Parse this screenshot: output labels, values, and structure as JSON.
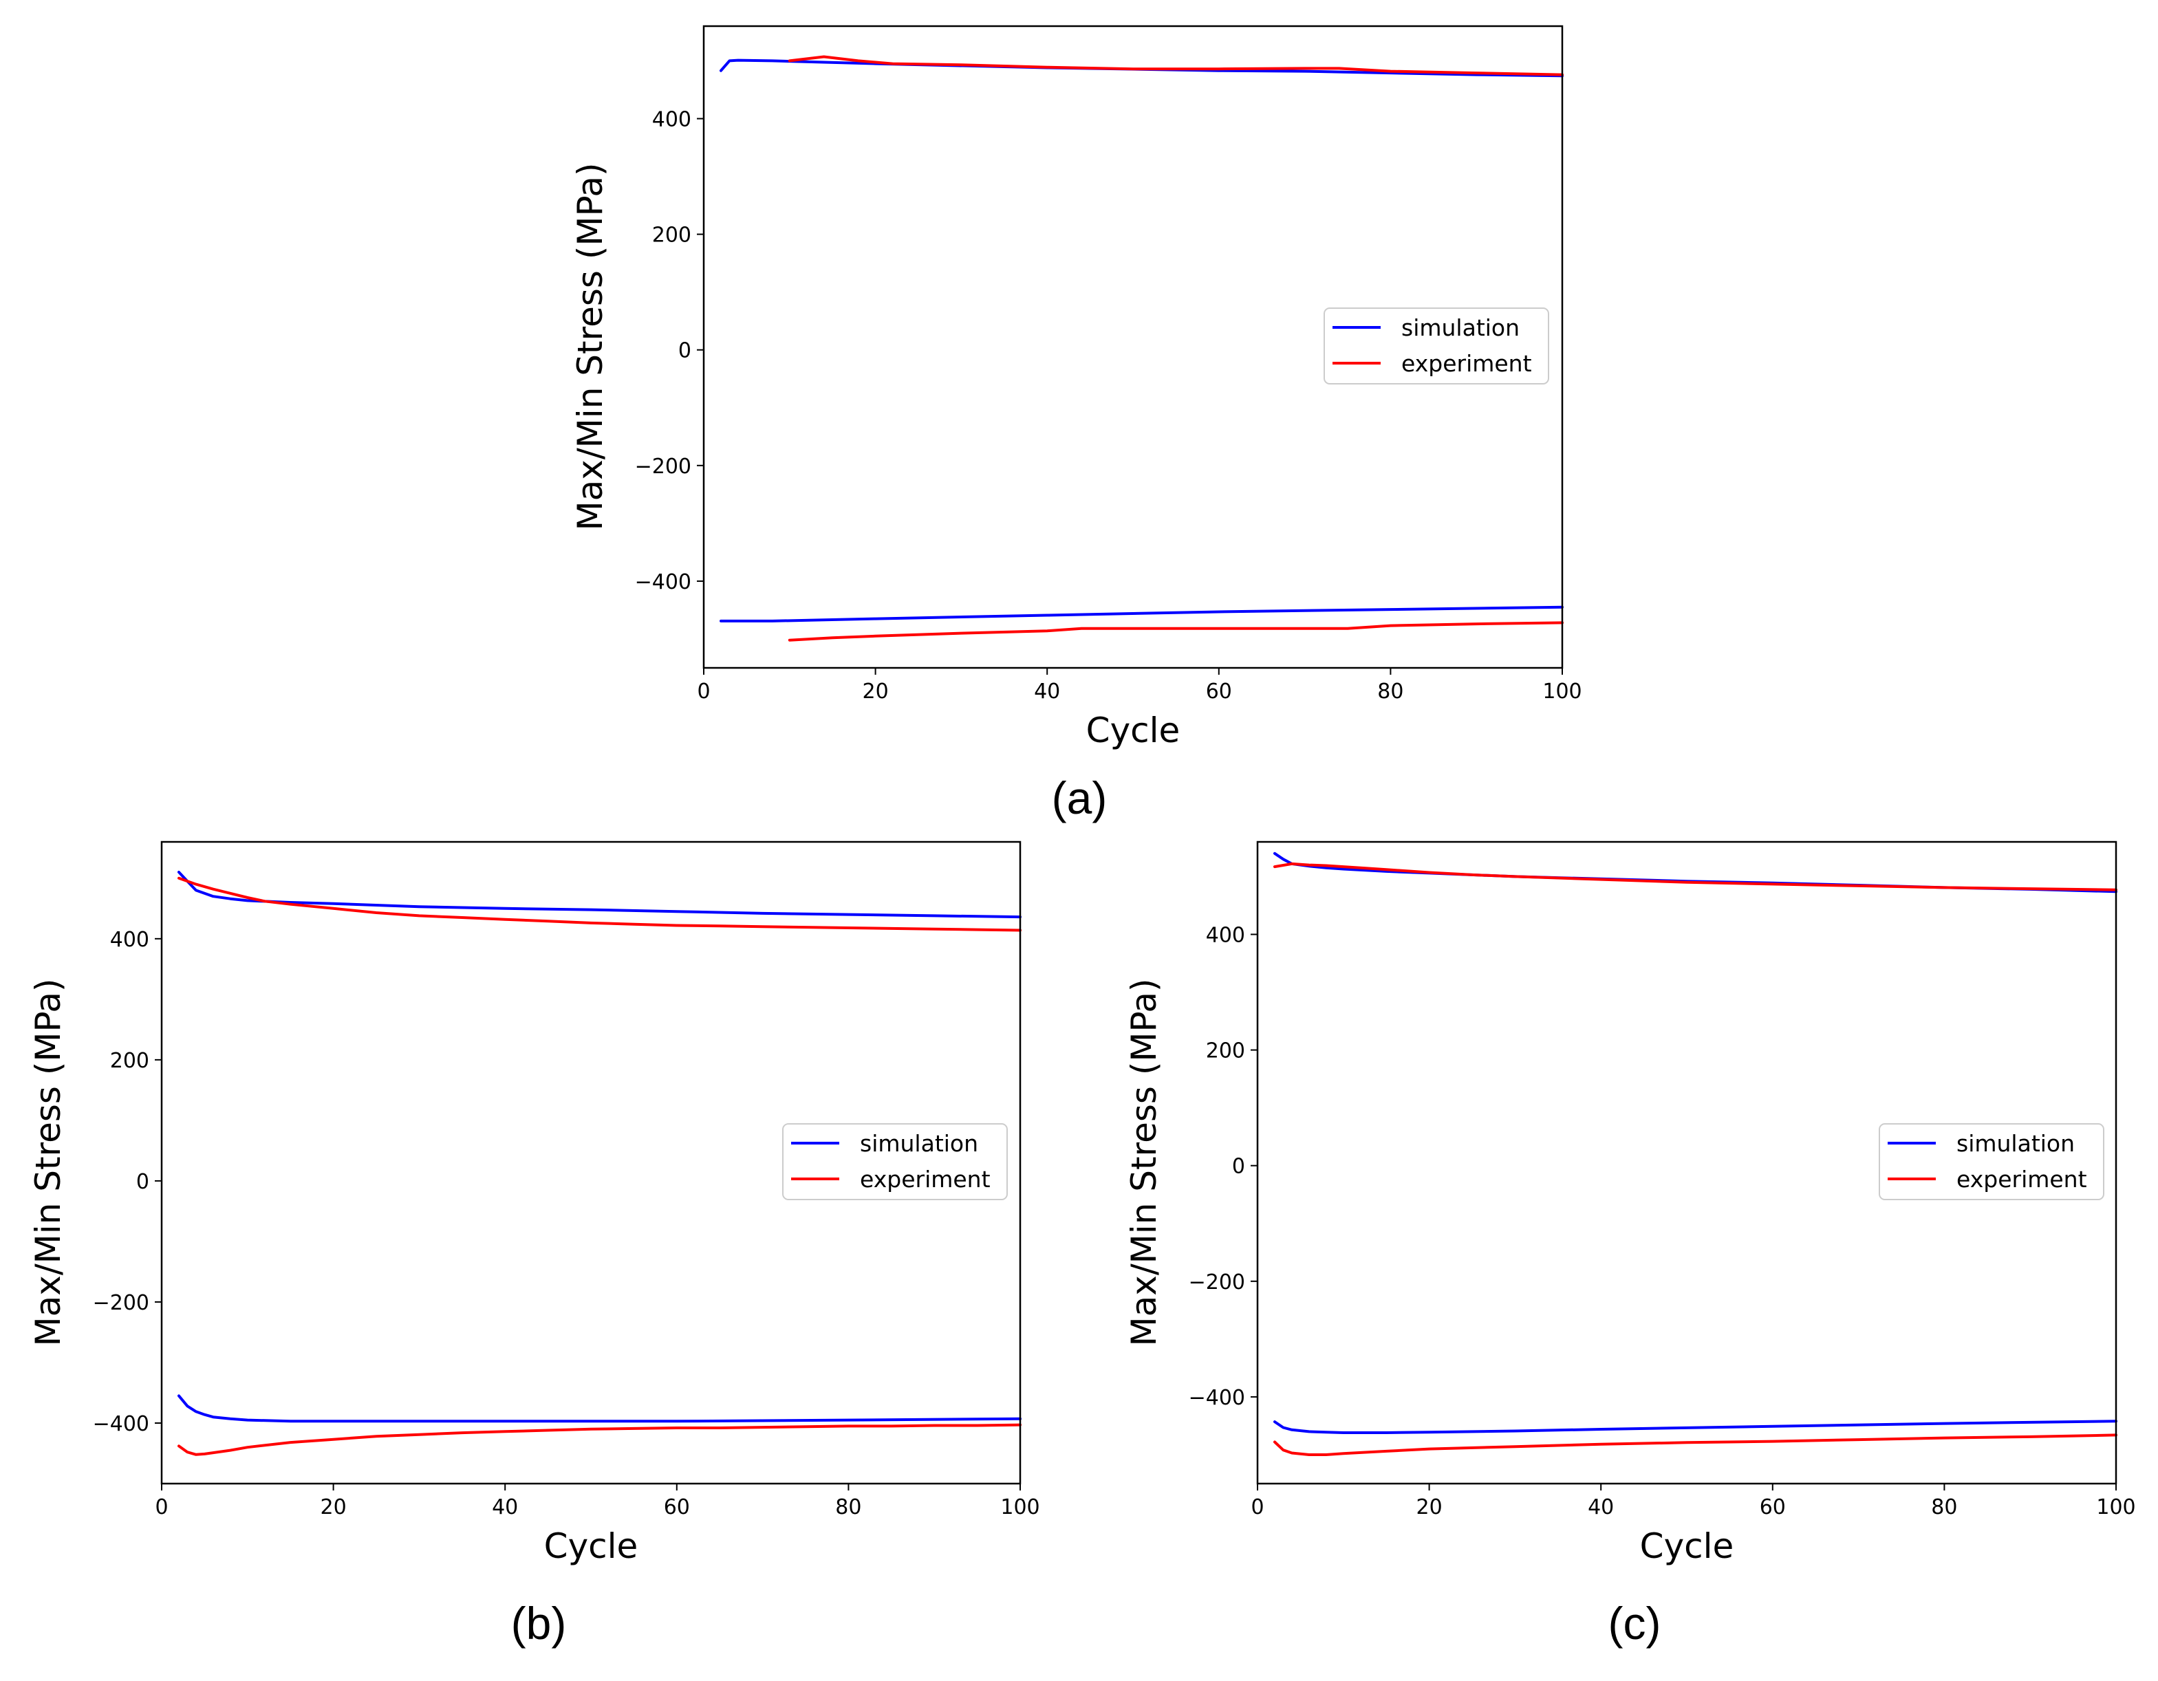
{
  "colors": {
    "simulation": "#0000ff",
    "experiment": "#ff0000",
    "axes": "#000000",
    "background": "#ffffff"
  },
  "chart_data": [
    {
      "id": "a",
      "type": "line",
      "caption": "(a)",
      "xlabel": "Cycle",
      "ylabel": "Max/Min Stress (MPa)",
      "xlim": [
        0,
        100
      ],
      "ylim": [
        -550,
        560
      ],
      "xticks": [
        0,
        20,
        40,
        60,
        80,
        100
      ],
      "xtick_labels": [
        "0",
        "20",
        "40",
        "60",
        "80",
        "100"
      ],
      "yticks": [
        400,
        200,
        0,
        -200,
        -400
      ],
      "ytick_labels": [
        "400",
        "200",
        "0",
        "−200",
        "−400"
      ],
      "legend": {
        "position": "center-right",
        "entries": [
          "simulation",
          "experiment"
        ]
      },
      "series": [
        {
          "name": "simulation",
          "color_key": "simulation",
          "x": [
            2,
            3,
            4,
            8,
            20,
            40,
            60,
            70,
            80,
            90,
            100
          ],
          "y": [
            483,
            500,
            501,
            500,
            495,
            488,
            483,
            482,
            479,
            476,
            474
          ]
        },
        {
          "name": "experiment",
          "color_key": "experiment",
          "x": [
            10,
            14,
            18,
            22,
            30,
            40,
            50,
            60,
            70,
            74,
            80,
            90,
            100
          ],
          "y": [
            500,
            507,
            500,
            495,
            493,
            489,
            486,
            486,
            487,
            487,
            482,
            479,
            476
          ]
        },
        {
          "name": "simulation",
          "color_key": "simulation",
          "x": [
            2,
            8,
            20,
            40,
            60,
            80,
            100
          ],
          "y": [
            -469,
            -469,
            -465,
            -459,
            -453,
            -449,
            -445
          ]
        },
        {
          "name": "experiment",
          "color_key": "experiment",
          "x": [
            10,
            15,
            20,
            30,
            40,
            44,
            60,
            70,
            75,
            80,
            90,
            100
          ],
          "y": [
            -502,
            -498,
            -495,
            -490,
            -486,
            -482,
            -482,
            -482,
            -482,
            -477,
            -474,
            -472
          ]
        }
      ]
    },
    {
      "id": "b",
      "type": "line",
      "caption": "(b)",
      "xlabel": "Cycle",
      "ylabel": "Max/Min Stress (MPa)",
      "xlim": [
        0,
        100
      ],
      "ylim": [
        -500,
        560
      ],
      "xticks": [
        0,
        20,
        40,
        60,
        80,
        100
      ],
      "xtick_labels": [
        "0",
        "20",
        "40",
        "60",
        "80",
        "100"
      ],
      "yticks": [
        400,
        200,
        0,
        -200,
        -400
      ],
      "ytick_labels": [
        "400",
        "200",
        "0",
        "−200",
        "−400"
      ],
      "legend": {
        "position": "center-right",
        "entries": [
          "simulation",
          "experiment"
        ]
      },
      "series": [
        {
          "name": "simulation",
          "color_key": "simulation",
          "x": [
            2,
            3,
            4,
            6,
            8,
            10,
            15,
            20,
            30,
            40,
            50,
            60,
            70,
            80,
            90,
            100
          ],
          "y": [
            510,
            495,
            480,
            470,
            466,
            463,
            460,
            458,
            453,
            450,
            448,
            445,
            442,
            440,
            438,
            436
          ]
        },
        {
          "name": "experiment",
          "color_key": "experiment",
          "x": [
            2,
            4,
            6,
            8,
            10,
            12,
            15,
            20,
            25,
            30,
            35,
            40,
            45,
            50,
            55,
            60,
            65,
            70,
            75,
            80,
            85,
            90,
            95,
            100
          ],
          "y": [
            500,
            490,
            482,
            475,
            468,
            462,
            457,
            450,
            443,
            438,
            435,
            432,
            429,
            426,
            424,
            422,
            421,
            420,
            419,
            418,
            417,
            416,
            415,
            414
          ]
        },
        {
          "name": "simulation",
          "color_key": "simulation",
          "x": [
            2,
            3,
            4,
            5,
            6,
            8,
            10,
            15,
            20,
            40,
            60,
            80,
            100
          ],
          "y": [
            -355,
            -372,
            -381,
            -386,
            -390,
            -393,
            -395,
            -397,
            -397,
            -397,
            -397,
            -395,
            -393
          ]
        },
        {
          "name": "experiment",
          "color_key": "experiment",
          "x": [
            2,
            3,
            4,
            5,
            6,
            8,
            10,
            15,
            20,
            25,
            30,
            35,
            40,
            45,
            50,
            55,
            60,
            65,
            70,
            75,
            80,
            85,
            90,
            95,
            100
          ],
          "y": [
            -438,
            -448,
            -452,
            -451,
            -449,
            -445,
            -440,
            -432,
            -427,
            -422,
            -419,
            -416,
            -414,
            -412,
            -410,
            -409,
            -408,
            -408,
            -407,
            -406,
            -405,
            -405,
            -404,
            -404,
            -403
          ]
        }
      ]
    },
    {
      "id": "c",
      "type": "line",
      "caption": "(c)",
      "xlabel": "Cycle",
      "ylabel": "Max/Min Stress (MPa)",
      "xlim": [
        0,
        100
      ],
      "ylim": [
        -550,
        560
      ],
      "xticks": [
        0,
        20,
        40,
        60,
        80,
        100
      ],
      "xtick_labels": [
        "0",
        "20",
        "40",
        "60",
        "80",
        "100"
      ],
      "yticks": [
        400,
        200,
        0,
        -200,
        -400
      ],
      "ytick_labels": [
        "400",
        "200",
        "0",
        "−200",
        "−400"
      ],
      "legend": {
        "position": "center-right",
        "entries": [
          "simulation",
          "experiment"
        ]
      },
      "series": [
        {
          "name": "simulation",
          "color_key": "simulation",
          "x": [
            2,
            3,
            4,
            6,
            8,
            10,
            15,
            20,
            30,
            40,
            50,
            60,
            70,
            80,
            90,
            100
          ],
          "y": [
            540,
            530,
            522,
            518,
            515,
            513,
            509,
            506,
            500,
            496,
            492,
            489,
            485,
            481,
            478,
            474
          ]
        },
        {
          "name": "experiment",
          "color_key": "experiment",
          "x": [
            2,
            4,
            6,
            8,
            10,
            12,
            15,
            20,
            25,
            30,
            40,
            50,
            60,
            70,
            80,
            90,
            100
          ],
          "y": [
            517,
            522,
            520,
            519,
            517,
            515,
            512,
            507,
            503,
            500,
            495,
            490,
            487,
            484,
            481,
            479,
            477
          ]
        },
        {
          "name": "simulation",
          "color_key": "simulation",
          "x": [
            2,
            3,
            4,
            6,
            8,
            10,
            15,
            20,
            30,
            40,
            60,
            80,
            100
          ],
          "y": [
            -443,
            -453,
            -457,
            -460,
            -461,
            -462,
            -462,
            -461,
            -459,
            -456,
            -451,
            -446,
            -442
          ]
        },
        {
          "name": "experiment",
          "color_key": "experiment",
          "x": [
            2,
            3,
            4,
            6,
            8,
            10,
            15,
            20,
            30,
            40,
            50,
            60,
            70,
            80,
            90,
            100
          ],
          "y": [
            -478,
            -492,
            -497,
            -500,
            -500,
            -498,
            -494,
            -490,
            -486,
            -482,
            -479,
            -477,
            -474,
            -471,
            -469,
            -466
          ]
        }
      ]
    }
  ]
}
